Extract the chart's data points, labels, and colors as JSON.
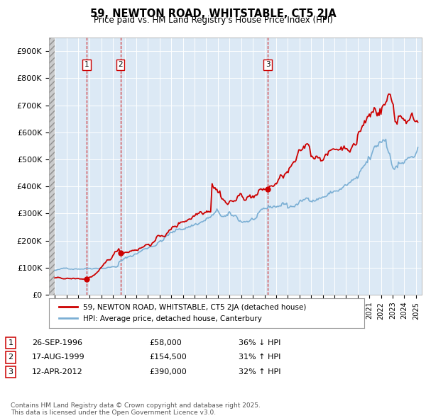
{
  "title1": "59, NEWTON ROAD, WHITSTABLE, CT5 2JA",
  "title2": "Price paid vs. HM Land Registry's House Price Index (HPI)",
  "hpi_label": "HPI: Average price, detached house, Canterbury",
  "price_label": "59, NEWTON ROAD, WHITSTABLE, CT5 2JA (detached house)",
  "sales": [
    {
      "num": 1,
      "date": 1996.74,
      "price": 58000,
      "label": "1",
      "pct": "36% ↓ HPI",
      "date_str": "26-SEP-1996"
    },
    {
      "num": 2,
      "date": 1999.63,
      "price": 154500,
      "label": "2",
      "pct": "31% ↑ HPI",
      "date_str": "17-AUG-1999"
    },
    {
      "num": 3,
      "date": 2012.28,
      "price": 390000,
      "label": "3",
      "pct": "32% ↑ HPI",
      "date_str": "12-APR-2012"
    }
  ],
  "price_color": "#cc0000",
  "hpi_color": "#7bafd4",
  "vline_color": "#cc0000",
  "grid_color": "#b8cfe8",
  "chart_bg": "#dce9f5",
  "background_color": "#ffffff",
  "xmin": 1993.5,
  "xmax": 2025.5,
  "ymin": 0,
  "ymax": 950000,
  "footer": "Contains HM Land Registry data © Crown copyright and database right 2025.\nThis data is licensed under the Open Government Licence v3.0.",
  "sale_box_color": "#cc0000"
}
